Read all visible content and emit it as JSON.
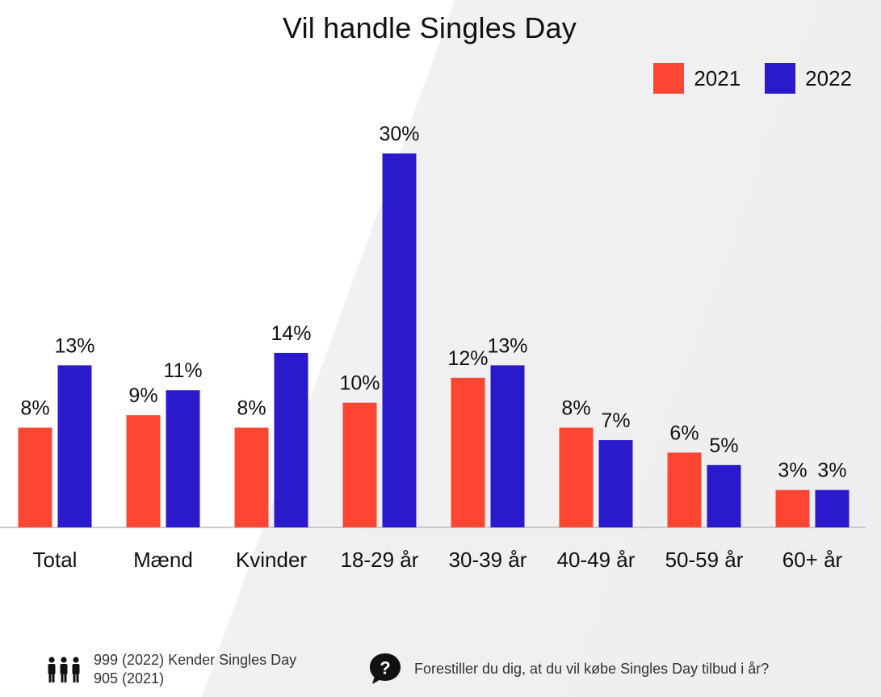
{
  "colors": {
    "series_2021": "#ff4632",
    "series_2022": "#2b19cc",
    "axis": "#bbbbbb"
  },
  "chart_data": {
    "type": "bar",
    "title": "Vil handle Singles Day",
    "categories": [
      "Total",
      "Mænd",
      "Kvinder",
      "18-29 år",
      "30-39 år",
      "40-49 år",
      "50-59 år",
      "60+ år"
    ],
    "series": [
      {
        "name": "2021",
        "values": [
          8,
          9,
          8,
          10,
          12,
          8,
          6,
          3
        ],
        "labels": [
          "8%",
          "9%",
          "8%",
          "10%",
          "12%",
          "8%",
          "6%",
          "3%"
        ]
      },
      {
        "name": "2022",
        "values": [
          13,
          11,
          14,
          30,
          13,
          7,
          5,
          3
        ],
        "labels": [
          "13%",
          "11%",
          "14%",
          "30%",
          "13%",
          "7%",
          "5%",
          "3%"
        ]
      }
    ],
    "ylim": [
      0,
      31
    ],
    "xlabel": "",
    "ylabel": "",
    "grid": false,
    "legend": "top-right"
  },
  "footer": {
    "respondents_line1": "999 (2022) Kender Singles Day",
    "respondents_line2": "905 (2021)",
    "people_icon": "people-group-icon",
    "question_icon": "speech-bubble-question-icon",
    "question": "Forestiller du dig, at du vil købe Singles Day tilbud i år?"
  }
}
